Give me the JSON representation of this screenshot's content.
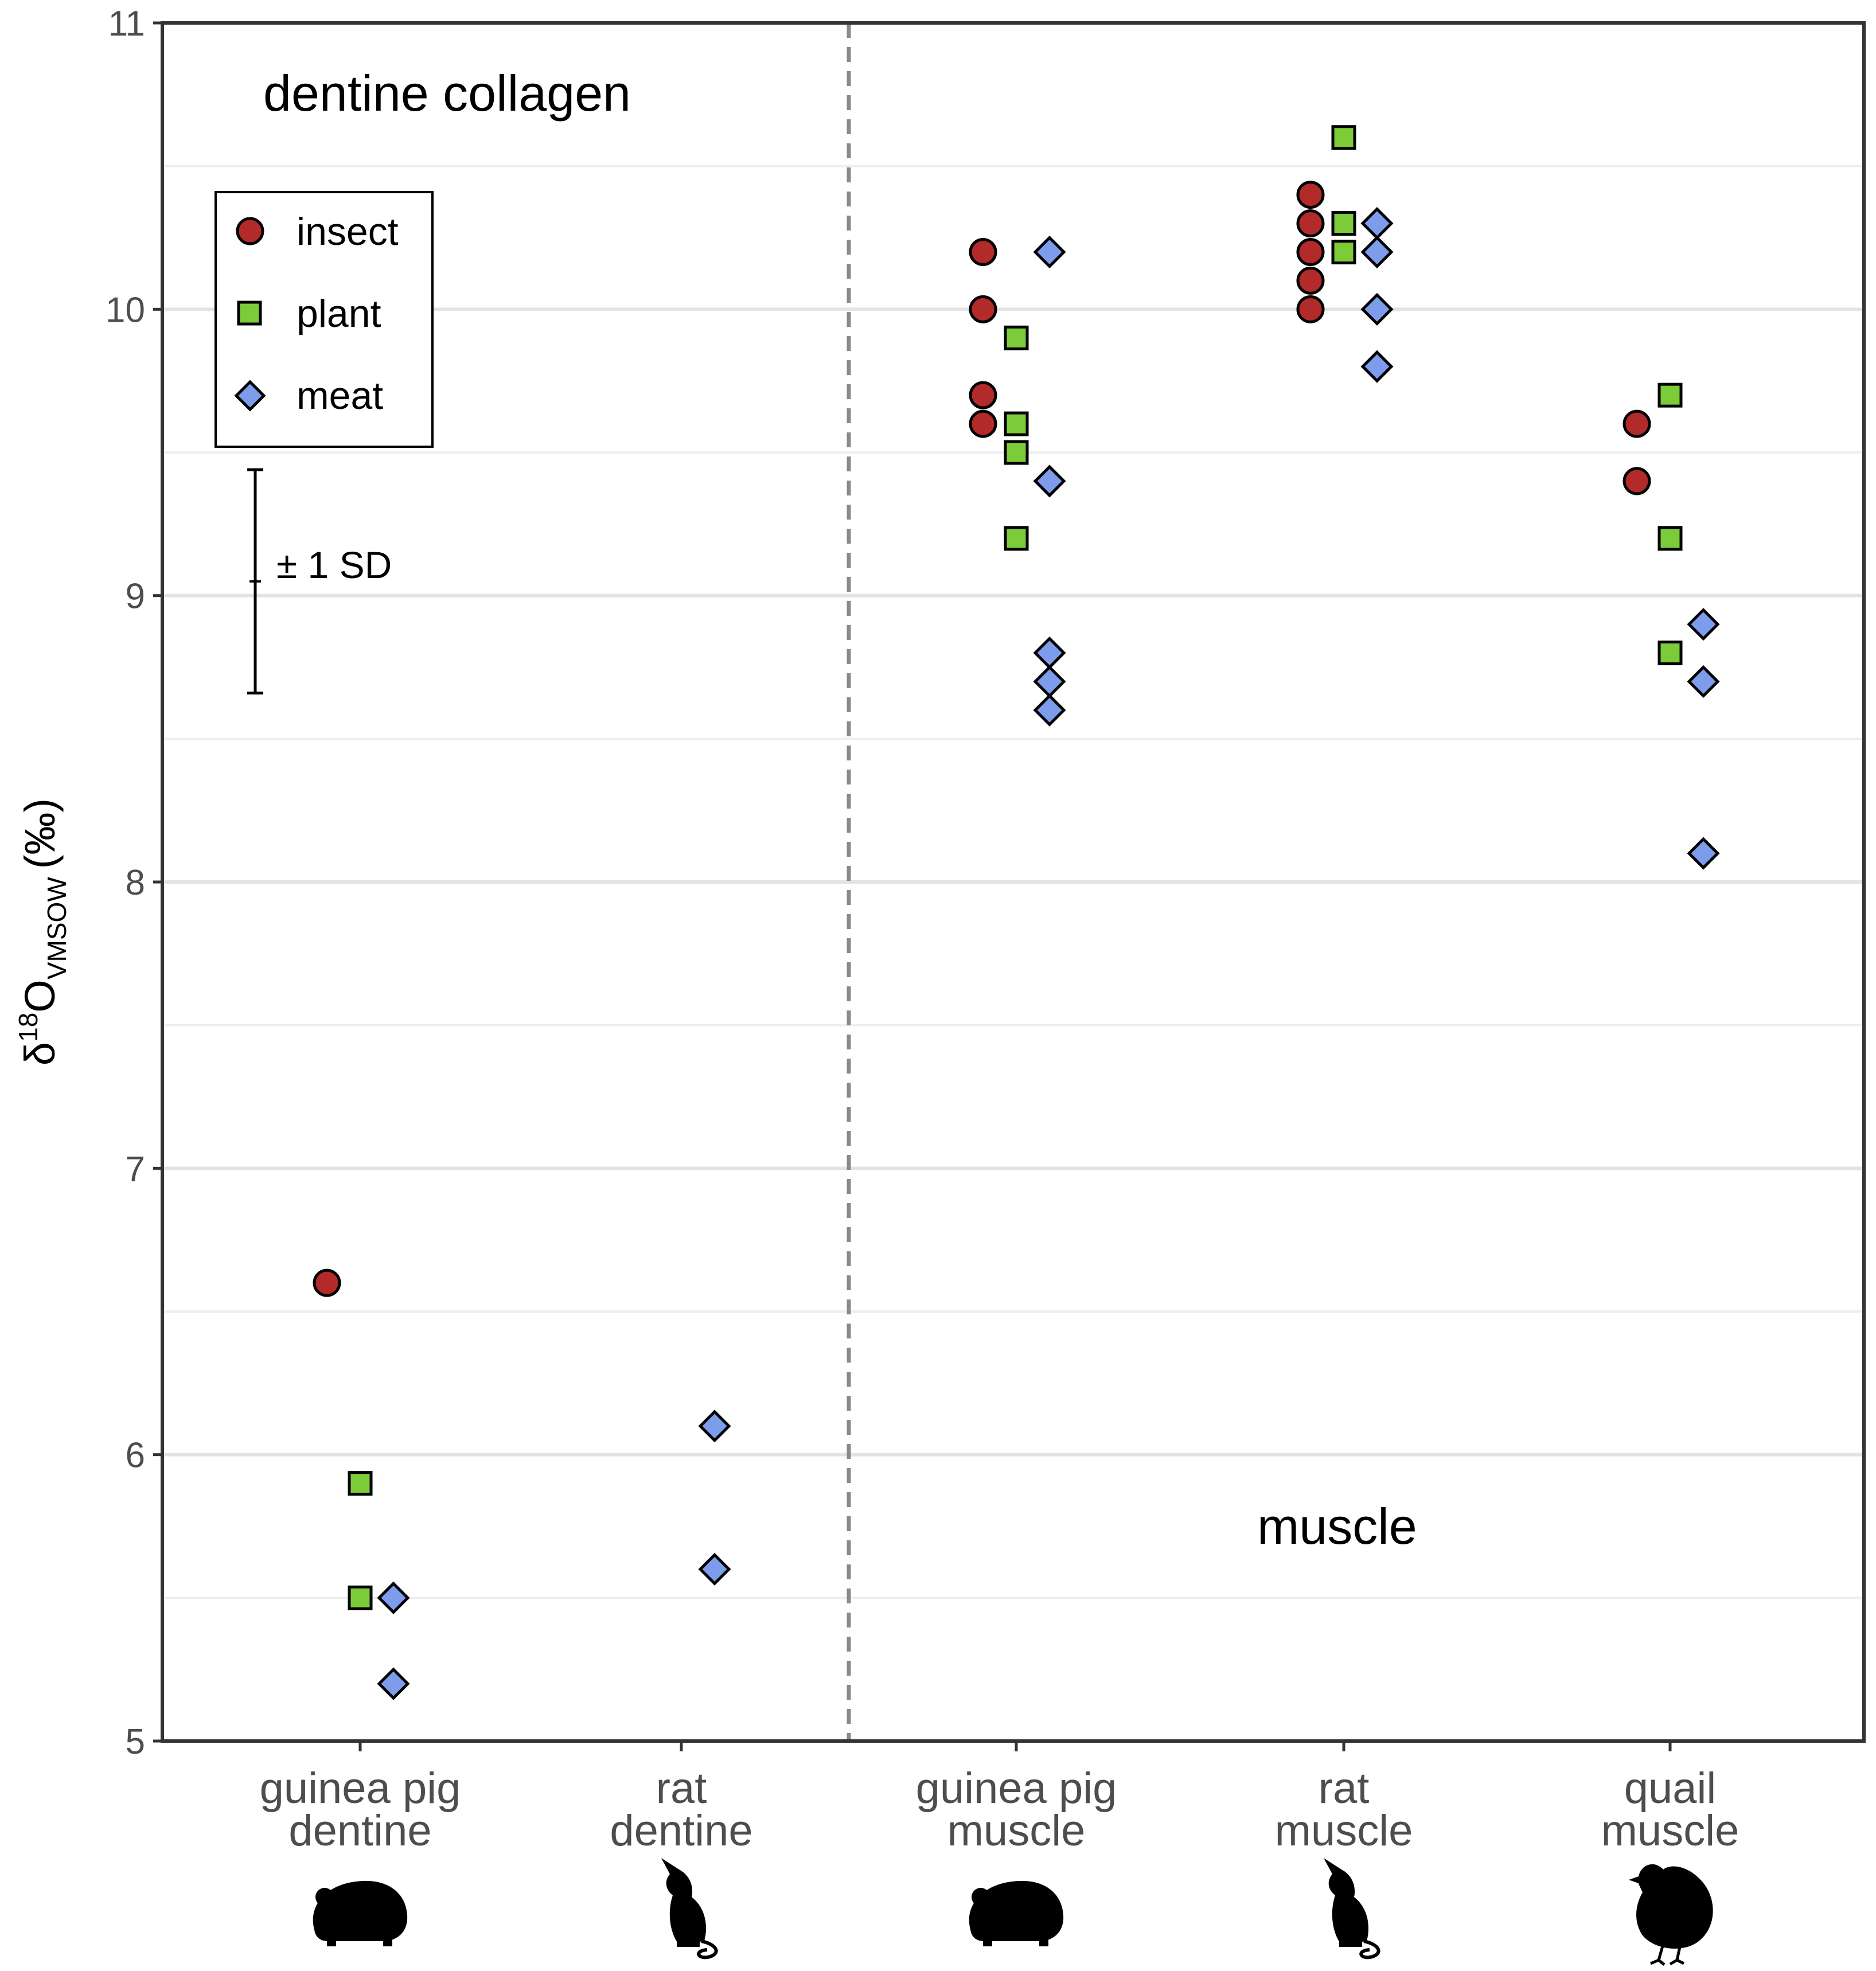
{
  "chart_data": {
    "type": "scatter",
    "title": "",
    "xlabel": "",
    "ylabel": {
      "delta": "δ",
      "superscript": "18",
      "base": "O",
      "subscript": "VMSOW",
      "unit": "(‰)"
    },
    "ylim": [
      5,
      11
    ],
    "yticks": [
      "5",
      "6",
      "7",
      "8",
      "9",
      "10",
      "11"
    ],
    "grid": true,
    "categories": [
      {
        "line1": "guinea pig",
        "line2": "dentine",
        "silhouette": "guinea-pig-silhouette-icon"
      },
      {
        "line1": "rat",
        "line2": "dentine",
        "silhouette": "rat-silhouette-icon"
      },
      {
        "line1": "guinea pig",
        "line2": "muscle",
        "silhouette": "guinea-pig-silhouette-icon"
      },
      {
        "line1": "rat",
        "line2": "muscle",
        "silhouette": "rat-silhouette-icon"
      },
      {
        "line1": "quail",
        "line2": "muscle",
        "silhouette": "quail-silhouette-icon"
      }
    ],
    "series": [
      {
        "name": "insect",
        "marker": "circle",
        "color": "#b22a2a",
        "offset": -1,
        "points": [
          [
            0,
            6.6
          ],
          [
            2,
            10.2
          ],
          [
            2,
            10.0
          ],
          [
            2,
            9.7
          ],
          [
            2,
            9.6
          ],
          [
            3,
            10.4
          ],
          [
            3,
            10.3
          ],
          [
            3,
            10.2
          ],
          [
            3,
            10.1
          ],
          [
            3,
            10.0
          ],
          [
            4,
            9.6
          ],
          [
            4,
            9.4
          ]
        ]
      },
      {
        "name": "plant",
        "marker": "square",
        "color": "#7ccc3a",
        "offset": 0,
        "points": [
          [
            0,
            5.9
          ],
          [
            0,
            5.5
          ],
          [
            2,
            9.9
          ],
          [
            2,
            9.6
          ],
          [
            2,
            9.5
          ],
          [
            2,
            9.2
          ],
          [
            3,
            10.6
          ],
          [
            3,
            10.3
          ],
          [
            3,
            10.2
          ],
          [
            4,
            9.7
          ],
          [
            4,
            9.2
          ],
          [
            4,
            8.8
          ]
        ]
      },
      {
        "name": "meat",
        "marker": "diamond",
        "color": "#7d9cec",
        "offset": 1,
        "points": [
          [
            0,
            5.5
          ],
          [
            0,
            5.2
          ],
          [
            1,
            6.1
          ],
          [
            1,
            5.6
          ],
          [
            2,
            10.2
          ],
          [
            2,
            9.4
          ],
          [
            2,
            8.8
          ],
          [
            2,
            8.7
          ],
          [
            2,
            8.6
          ],
          [
            3,
            10.3
          ],
          [
            3,
            10.2
          ],
          [
            3,
            10.0
          ],
          [
            3,
            9.8
          ],
          [
            4,
            8.9
          ],
          [
            4,
            8.7
          ],
          [
            4,
            8.1
          ]
        ]
      }
    ],
    "annotations": {
      "panel_left": "dentine collagen",
      "panel_right": "muscle",
      "sd_label": "± 1 SD",
      "sd_center": 9.05,
      "sd_value": 0.39,
      "divider_between_categories": [
        1,
        2
      ]
    },
    "legend": {
      "position": "top-left",
      "entries": [
        "insect",
        "plant",
        "meat"
      ]
    }
  }
}
